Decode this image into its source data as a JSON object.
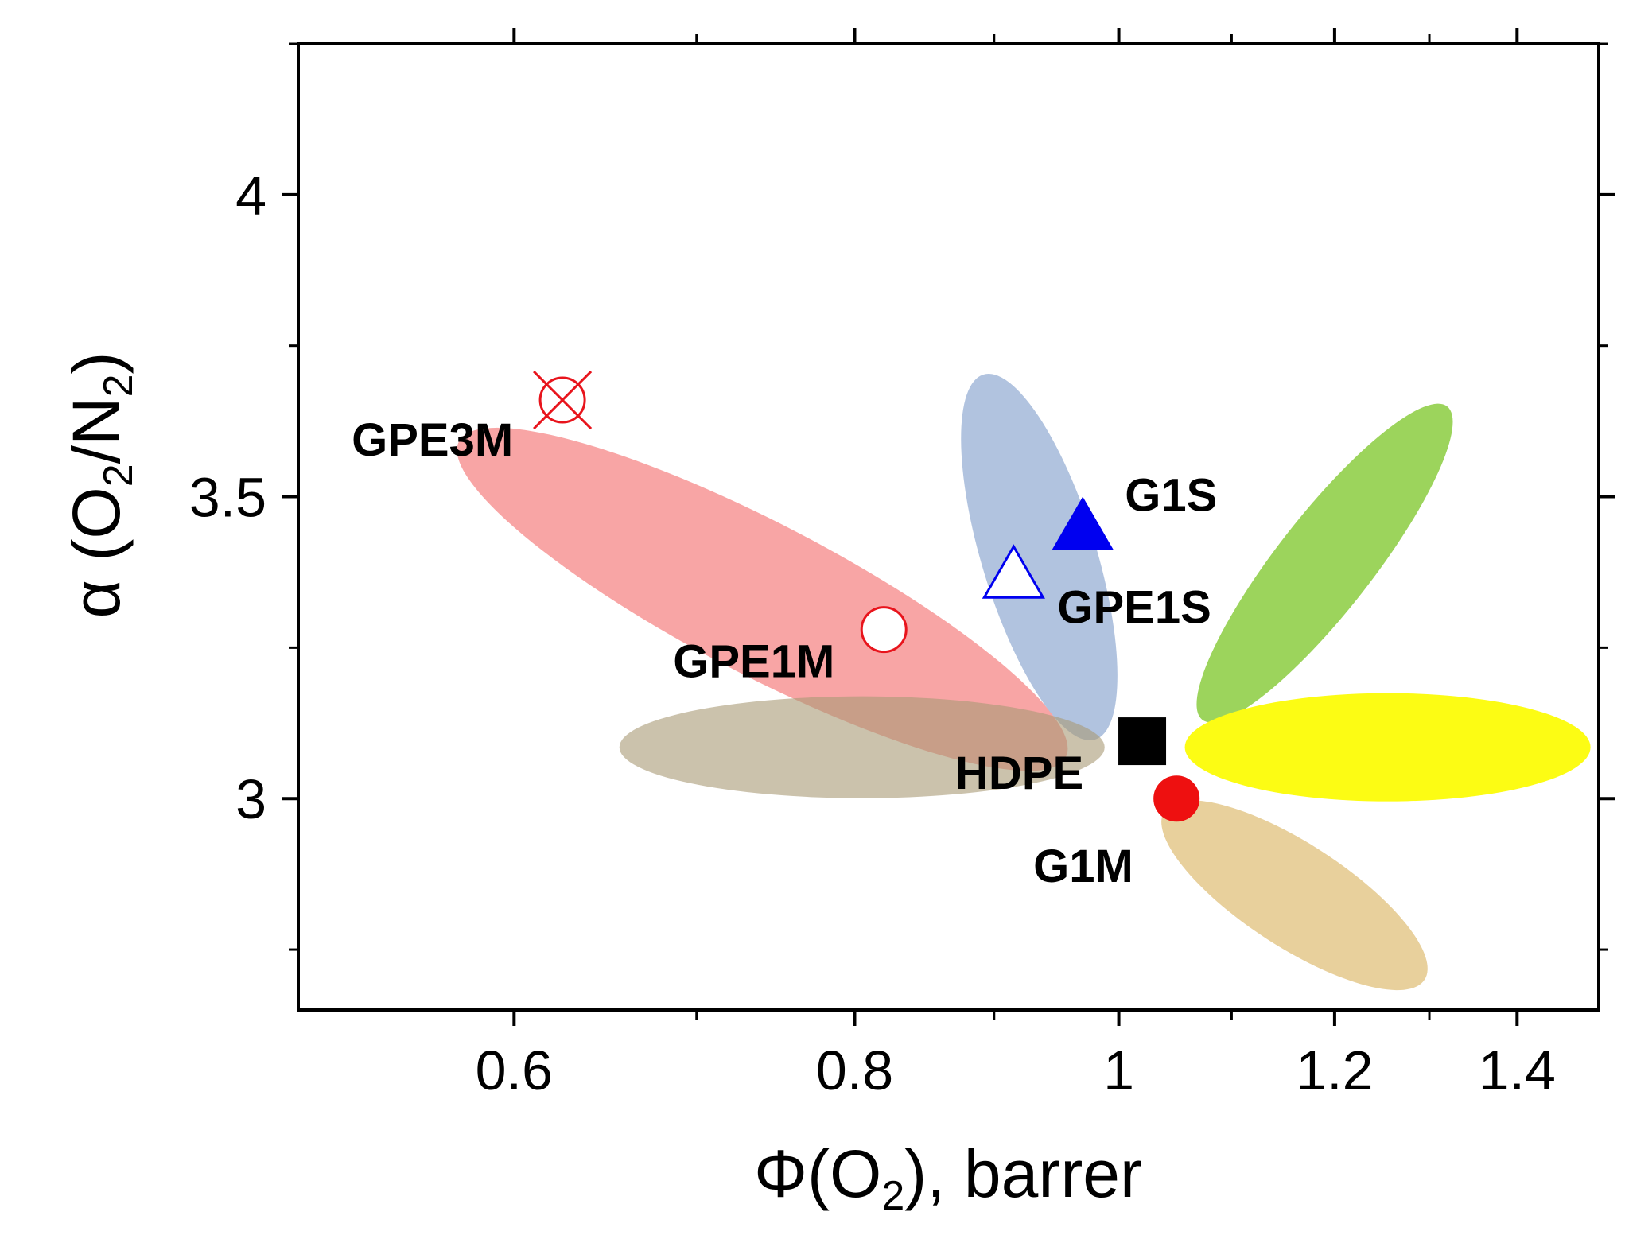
{
  "chart_data": {
    "type": "scatter",
    "xlabel": {
      "symbol": "Φ",
      "pre": "(O",
      "sub": "2",
      "post": "), barrer"
    },
    "ylabel": {
      "symbol": "α",
      "pre": " (O",
      "sub1": "2",
      "mid": "/N",
      "sub2": "2",
      "post": ")"
    },
    "x_scale": "log",
    "xlim": [
      0.5,
      1.5
    ],
    "ylim": [
      2.65,
      4.25
    ],
    "x_ticks_major": [
      0.6,
      0.8,
      1,
      1.2,
      1.4
    ],
    "x_tick_labels": [
      "0.6",
      "0.8",
      "1",
      "1.2",
      "1.4"
    ],
    "x_ticks_minor": [
      0.7,
      0.9,
      1.1,
      1.3
    ],
    "y_ticks_major": [
      3,
      3.5,
      4
    ],
    "y_tick_labels": [
      "3",
      "3.5",
      "4"
    ],
    "y_ticks_minor": [
      2.75,
      3.25,
      3.75,
      4.25
    ],
    "regions": [
      {
        "color": "#f8a0a0",
        "opacity": 0.95,
        "cx": 0.74,
        "cy": 3.33,
        "note": "red ellipse around GPE3M and GPE1M"
      },
      {
        "color": "#a8bcdc",
        "opacity": 0.9,
        "cx": 0.935,
        "cy": 3.4,
        "note": "blue ellipse around GPE1S and G1S"
      },
      {
        "color": "#9cd45c",
        "opacity": 1,
        "cx": 1.19,
        "cy": 3.39,
        "note": "green ellipse"
      },
      {
        "color": "#fcfc14",
        "opacity": 1,
        "cx": 1.255,
        "cy": 3.085,
        "note": "yellow ellipse"
      },
      {
        "color": "#e8d09c",
        "opacity": 1,
        "cx": 1.16,
        "cy": 2.84,
        "note": "tan ellipse"
      },
      {
        "color": "#a89a74",
        "opacity": 0.6,
        "cx": 0.805,
        "cy": 3.085,
        "note": "khaki ellipse"
      }
    ],
    "points": [
      {
        "name": "GPE3M",
        "x": 0.625,
        "y": 3.66,
        "marker": "circle-x",
        "color": "#e8141c"
      },
      {
        "name": "GPE1M",
        "x": 0.82,
        "y": 3.28,
        "marker": "circle-open",
        "color": "#e8141c"
      },
      {
        "name": "G1S",
        "x": 0.97,
        "y": 3.45,
        "marker": "triangle-filled",
        "color": "#0000f0"
      },
      {
        "name": "GPE1S",
        "x": 0.915,
        "y": 3.37,
        "marker": "triangle-open",
        "color": "#0000f0"
      },
      {
        "name": "HDPE",
        "x": 1.02,
        "y": 3.095,
        "marker": "square-filled",
        "color": "#000000"
      },
      {
        "name": "G1M",
        "x": 1.05,
        "y": 3.0,
        "marker": "circle-filled",
        "color": "#ee1010"
      }
    ]
  }
}
